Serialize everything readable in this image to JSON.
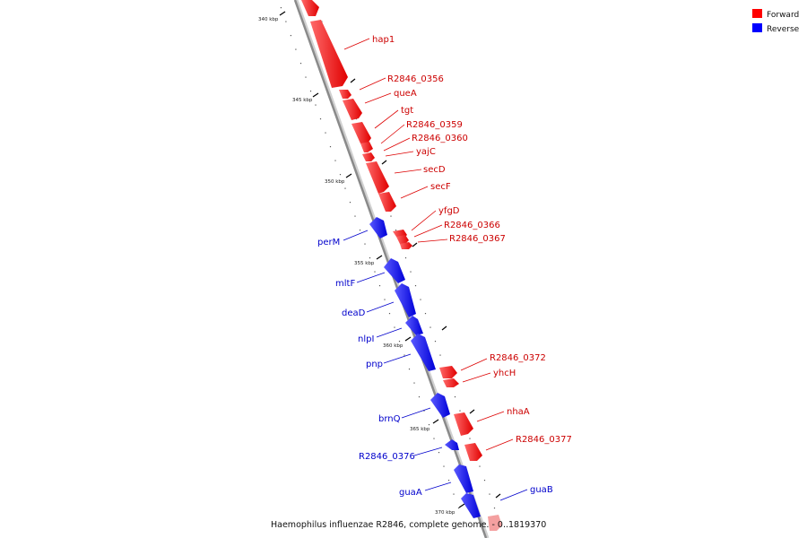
{
  "caption": "Haemophilus influenzae R2846, complete genome. - 0..1819370",
  "legend": [
    {
      "label": "Forward",
      "color": "#ff0000"
    },
    {
      "label": "Reverse",
      "color": "#0000ff"
    }
  ],
  "ticks": [
    "340 kbp",
    "345 kbp",
    "350 kbp",
    "355 kbp",
    "360 kbp",
    "365 kbp",
    "370 kbp"
  ],
  "genes": {
    "forward": [
      {
        "name": "hap1"
      },
      {
        "name": "R2846_0356"
      },
      {
        "name": "queA"
      },
      {
        "name": "tgt"
      },
      {
        "name": "R2846_0359"
      },
      {
        "name": "R2846_0360"
      },
      {
        "name": "yajC"
      },
      {
        "name": "secD"
      },
      {
        "name": "secF"
      },
      {
        "name": "yfgD"
      },
      {
        "name": "R2846_0366"
      },
      {
        "name": "R2846_0367"
      },
      {
        "name": "R2846_0372"
      },
      {
        "name": "yhcH"
      },
      {
        "name": "nhaA"
      },
      {
        "name": "R2846_0377"
      },
      {
        "name": "guaB"
      }
    ],
    "reverse": [
      {
        "name": "perM"
      },
      {
        "name": "mltF"
      },
      {
        "name": "deaD"
      },
      {
        "name": "nlpI"
      },
      {
        "name": "pnp"
      },
      {
        "name": "brnQ"
      },
      {
        "name": "R2846_0376"
      },
      {
        "name": "guaA"
      }
    ]
  },
  "colors": {
    "forward": "#ff0000",
    "reverse": "#0000ff",
    "forward_text": "#cc0000",
    "reverse_text": "#0000cc",
    "backbone": "#888888"
  }
}
